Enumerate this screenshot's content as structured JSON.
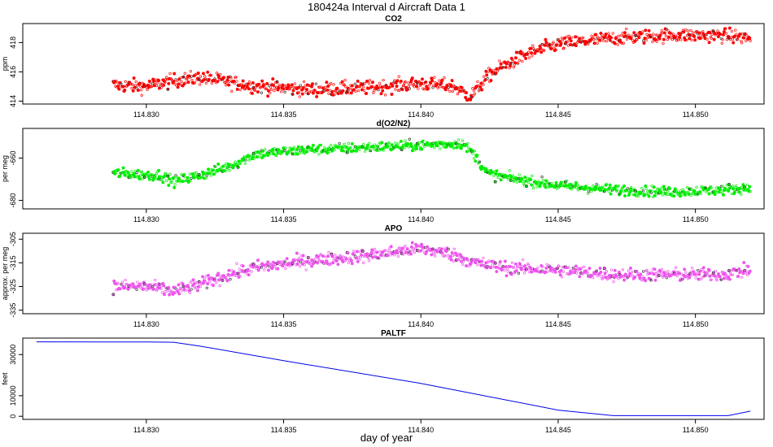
{
  "figure": {
    "title": "180424a   Interval d Aircraft Data 1",
    "xlabel": "day of year"
  },
  "chart_data": [
    {
      "type": "scatter",
      "title": "CO2",
      "ylabel": "ppm",
      "xlim": [
        114.8255,
        114.8525
      ],
      "ylim": [
        413.8,
        419.3
      ],
      "xticks": [
        "114.830",
        "114.835",
        "114.840",
        "114.845",
        "114.850"
      ],
      "yticks": [
        "414",
        "416",
        "418"
      ],
      "color": "#ff0000",
      "x_start": 114.8288,
      "x_end": 114.852,
      "trend": [
        [
          114.8288,
          415.1
        ],
        [
          114.83,
          415.0
        ],
        [
          114.831,
          415.4
        ],
        [
          114.832,
          415.6
        ],
        [
          114.833,
          415.3
        ],
        [
          114.834,
          415.0
        ],
        [
          114.836,
          414.8
        ],
        [
          114.838,
          414.9
        ],
        [
          114.84,
          415.2
        ],
        [
          114.8412,
          415.0
        ],
        [
          114.8418,
          414.3
        ],
        [
          114.8425,
          415.8
        ],
        [
          114.843,
          416.4
        ],
        [
          114.844,
          417.3
        ],
        [
          114.845,
          417.9
        ],
        [
          114.847,
          418.3
        ],
        [
          114.849,
          418.5
        ],
        [
          114.851,
          418.5
        ],
        [
          114.852,
          418.3
        ]
      ],
      "noise": 0.45
    },
    {
      "type": "scatter",
      "title": "d(O2/N2)",
      "ylabel": "per meg",
      "xlim": [
        114.8255,
        114.8525
      ],
      "ylim": [
        -684,
        -646
      ],
      "xticks": [
        "114.830",
        "114.835",
        "114.840",
        "114.845",
        "114.850"
      ],
      "yticks": [
        "-660",
        "-680"
      ],
      "color": "#00ee00",
      "x_start": 114.8288,
      "x_end": 114.852,
      "trend": [
        [
          114.8288,
          -667
        ],
        [
          114.83,
          -668
        ],
        [
          114.8305,
          -668
        ],
        [
          114.831,
          -671
        ],
        [
          114.832,
          -668
        ],
        [
          114.833,
          -664
        ],
        [
          114.834,
          -658
        ],
        [
          114.836,
          -656
        ],
        [
          114.838,
          -655
        ],
        [
          114.84,
          -654
        ],
        [
          114.8415,
          -653
        ],
        [
          114.842,
          -659
        ],
        [
          114.8424,
          -667
        ],
        [
          114.843,
          -669
        ],
        [
          114.845,
          -673
        ],
        [
          114.847,
          -675
        ],
        [
          114.849,
          -676
        ],
        [
          114.851,
          -675
        ],
        [
          114.852,
          -674
        ]
      ],
      "noise": 2.3
    },
    {
      "type": "scatter",
      "title": "APO",
      "ylabel": "approx. per meg",
      "xlim": [
        114.8255,
        114.8525
      ],
      "ylim": [
        -336.5,
        -302.5
      ],
      "xticks": [
        "114.830",
        "114.835",
        "114.840",
        "114.845",
        "114.850"
      ],
      "yticks": [
        "-305",
        "-315",
        "-325",
        "-335"
      ],
      "color": "#ee55ee",
      "x_start": 114.8288,
      "x_end": 114.852,
      "trend": [
        [
          114.8288,
          -325
        ],
        [
          114.83,
          -325
        ],
        [
          114.831,
          -327
        ],
        [
          114.832,
          -324
        ],
        [
          114.833,
          -320
        ],
        [
          114.834,
          -317
        ],
        [
          114.836,
          -314
        ],
        [
          114.838,
          -312
        ],
        [
          114.84,
          -309
        ],
        [
          114.841,
          -311
        ],
        [
          114.842,
          -315
        ],
        [
          114.843,
          -317
        ],
        [
          114.845,
          -318
        ],
        [
          114.847,
          -320
        ],
        [
          114.849,
          -320
        ],
        [
          114.851,
          -320
        ],
        [
          114.852,
          -318
        ]
      ],
      "noise": 2.6
    },
    {
      "type": "line",
      "title": "PALTF",
      "ylabel": "feet",
      "xlim": [
        114.8255,
        114.8525
      ],
      "ylim": [
        -1500,
        38000
      ],
      "xticks": [
        "114.830",
        "114.835",
        "114.840",
        "114.845",
        "114.850"
      ],
      "yticks": [
        "0",
        "10000",
        "30000"
      ],
      "color": "#0000ee",
      "points": [
        [
          114.826,
          36200
        ],
        [
          114.83,
          36100
        ],
        [
          114.831,
          36000
        ],
        [
          114.832,
          34000
        ],
        [
          114.835,
          27000
        ],
        [
          114.84,
          16000
        ],
        [
          114.845,
          3000
        ],
        [
          114.847,
          300
        ],
        [
          114.85,
          300
        ],
        [
          114.8512,
          300
        ],
        [
          114.852,
          2500
        ]
      ]
    }
  ]
}
